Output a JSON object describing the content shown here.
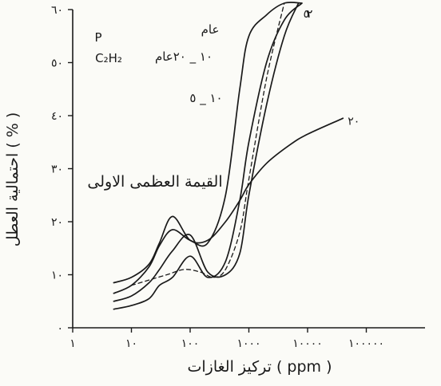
{
  "chart_data": {
    "type": "line",
    "title": "",
    "xlabel": "تركيز الغازات ( ppm )",
    "ylabel": "احتمالية العطل ( % )",
    "x_scale": "log",
    "xlim": [
      1,
      1000000
    ],
    "ylim": [
      0,
      60
    ],
    "x_ticks": [
      1,
      10,
      100,
      1000,
      10000,
      100000
    ],
    "x_tick_labels": [
      "١",
      "١٠",
      "١٠٠",
      "١٠٠٠",
      "١٠٠٠٠",
      "١٠٠٠٠٠"
    ],
    "y_ticks": [
      0,
      10,
      20,
      30,
      40,
      50,
      60
    ],
    "y_tick_labels": [
      "٠",
      "١٠",
      "٢٠",
      "٣٠",
      "٤٠",
      "٥٠",
      "٦٠"
    ],
    "grid": false,
    "legend": "none",
    "annotations": {
      "gas_p": "P",
      "gas_formula": "C₂H₂",
      "age_header": "عام",
      "age_range": "١٠ _ ٢٠عام",
      "age_range_2": "١٠ _ ٥",
      "first_peak": "القيمة العظمى الاولى"
    },
    "series": [
      {
        "label": "٢",
        "x": [
          5,
          10,
          20,
          30,
          50,
          100,
          200,
          400,
          700,
          1000,
          2000,
          4000,
          8000
        ],
        "y": [
          3.5,
          4.2,
          5.5,
          8.0,
          9.5,
          13.5,
          9.5,
          12.5,
          24.0,
          35.0,
          50.0,
          58.0,
          66.0
        ]
      },
      {
        "label": "٥",
        "x": [
          5,
          10,
          20,
          30,
          50,
          100,
          200,
          400,
          700,
          1000,
          2000,
          4000,
          7000
        ],
        "y": [
          5.0,
          6.0,
          8.5,
          11.0,
          14.5,
          17.5,
          10.5,
          10.0,
          14.0,
          25.0,
          42.0,
          55.0,
          62.0
        ]
      },
      {
        "label": "٢",
        "x": [
          5,
          10,
          20,
          30,
          50,
          100,
          200,
          400,
          700,
          1000,
          2000,
          4000,
          8000
        ],
        "y": [
          6.5,
          8.0,
          11.5,
          15.5,
          18.5,
          16.5,
          16.0,
          25.0,
          45.0,
          55.0,
          59.0,
          62.0,
          66.0
        ]
      },
      {
        "label": "٢٠",
        "x": [
          5,
          10,
          20,
          30,
          50,
          100,
          200,
          400,
          700,
          1000,
          2000,
          5000,
          10000,
          40000
        ],
        "y": [
          8.5,
          9.5,
          12.0,
          16.0,
          21.0,
          16.5,
          16.5,
          20.0,
          24.0,
          27.0,
          31.0,
          34.5,
          36.5,
          39.5
        ]
      },
      {
        "label": "١٠_٥",
        "dashed": true,
        "x": [
          10,
          20,
          40,
          80,
          150,
          250,
          400,
          700,
          1000,
          2000,
          4000
        ],
        "y": [
          8.0,
          9.0,
          10.0,
          11.0,
          10.5,
          9.5,
          11.0,
          18.0,
          28.0,
          47.0,
          62.0
        ]
      }
    ]
  }
}
